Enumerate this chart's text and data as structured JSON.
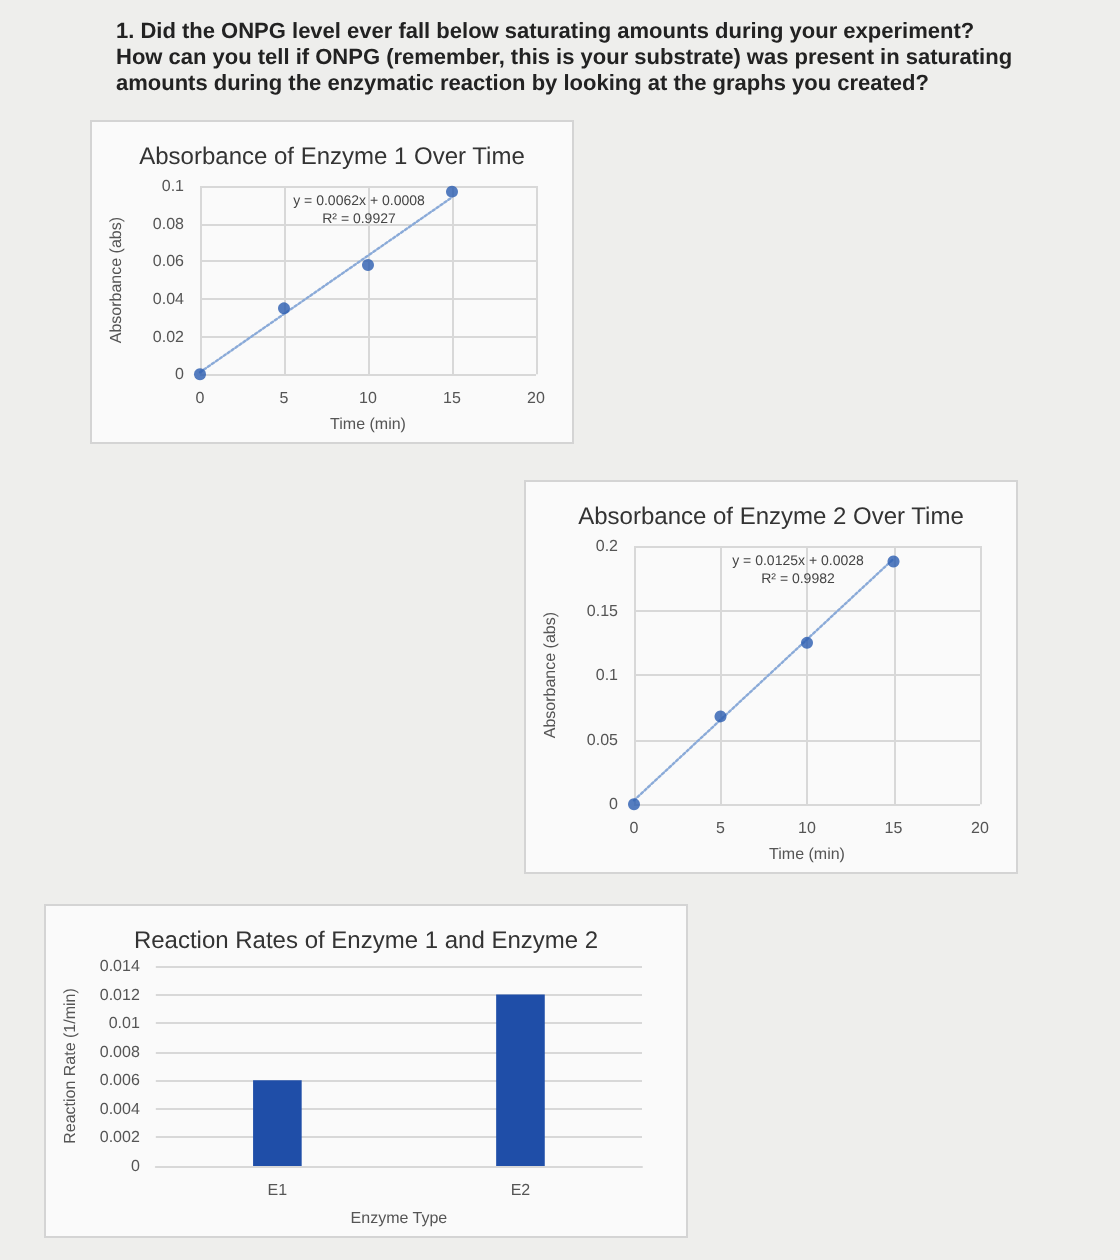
{
  "chart_data": [
    {
      "type": "scatter",
      "title": "Absorbance of Enzyme 1 Over Time",
      "xlabel": "Time (min)",
      "ylabel": "Absorbance (abs)",
      "annotations": [
        "1. Did the ONPG level ever fall below saturating amounts during your experiment? How can you tell if ONPG (remember, this is your substrate) was present in saturating amounts during the enzymatic reaction by looking at the graphs you created?",
        "y = 0.0062x + 0.0008",
        "R² = 0.9927"
      ],
      "xlim": [
        0,
        20
      ],
      "xticks": [
        0,
        5,
        10,
        15,
        20
      ],
      "ylim": [
        0,
        0.1
      ],
      "yticks": [
        0,
        0.02,
        0.04,
        0.06,
        0.08,
        0.1
      ],
      "grid": true,
      "series": [
        {
          "type": "scatter",
          "marker": "circle",
          "color": "#2a5cb0",
          "x": [
            0,
            5,
            10,
            15
          ],
          "values": [
            0,
            0.035,
            0.058,
            0.097
          ]
        },
        {
          "type": "line",
          "marker": "none",
          "line_style": "dotted",
          "color": "#8aaad8",
          "x": [
            0,
            15
          ],
          "values": [
            0.001,
            0.094
          ]
        }
      ]
    },
    {
      "type": "scatter",
      "title": "Absorbance of Enzyme 2 Over Time",
      "xlabel": "Time (min)",
      "ylabel": "Absorbance (abs)",
      "annotations": [
        "y = 0.0125x + 0.0028",
        "R² = 0.9982"
      ],
      "xlim": [
        0,
        20
      ],
      "xticks": [
        0,
        5,
        10,
        15,
        20
      ],
      "ylim": [
        0,
        0.2
      ],
      "yticks": [
        0,
        0.05,
        0.1,
        0.15,
        0.2
      ],
      "grid": true,
      "series": [
        {
          "type": "scatter",
          "marker": "circle",
          "color": "#2a5cb0",
          "x": [
            0,
            5,
            10,
            15
          ],
          "values": [
            0,
            0.068,
            0.125,
            0.188
          ]
        },
        {
          "type": "line",
          "marker": "none",
          "line_style": "dotted",
          "color": "#8aaad8",
          "x": [
            0,
            15
          ],
          "values": [
            0.003,
            0.19
          ]
        }
      ]
    },
    {
      "type": "bar",
      "title": "Reaction Rates of Enzyme 1 and Enzyme 2",
      "xlabel": "Enzyme Type",
      "ylabel": "Reaction Rate (1/min)",
      "categories": [
        "E1",
        "E2"
      ],
      "values": [
        0.006,
        0.012
      ],
      "color": "#1f4ea8",
      "ylim": [
        0,
        0.014
      ],
      "yticks": [
        0,
        0.002,
        0.004,
        0.006,
        0.008,
        0.01,
        0.012,
        0.014
      ],
      "grid": "y"
    }
  ]
}
